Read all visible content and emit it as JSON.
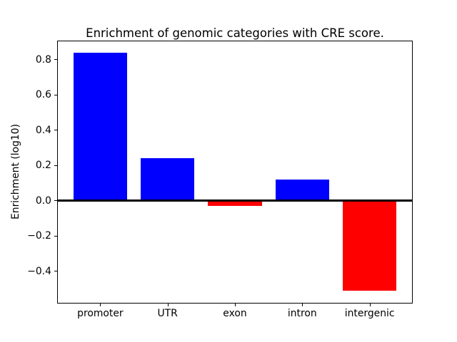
{
  "chart_data": {
    "type": "bar",
    "title": "Enrichment of genomic categories with CRE score.",
    "xlabel": "",
    "ylabel": "Enrichment (log10)",
    "categories": [
      "promoter",
      "UTR",
      "exon",
      "intron",
      "intergenic"
    ],
    "values": [
      0.84,
      0.24,
      -0.03,
      0.12,
      -0.51
    ],
    "bar_colors": [
      "#0000ff",
      "#0000ff",
      "#ff0000",
      "#0000ff",
      "#ff0000"
    ],
    "positive_color": "#0000ff",
    "negative_color": "#ff0000",
    "ylim": [
      -0.583,
      0.908
    ],
    "xlim": [
      -0.64,
      4.64
    ],
    "yticks": [
      0.8,
      0.6,
      0.4,
      0.2,
      0.0,
      -0.2,
      -0.4
    ],
    "bar_width": 0.8,
    "grid": false,
    "legend": "none",
    "zero_line": {
      "color": "#000000",
      "linewidth": 2
    },
    "background_color": "#ffffff",
    "spine_color": "#000000"
  }
}
